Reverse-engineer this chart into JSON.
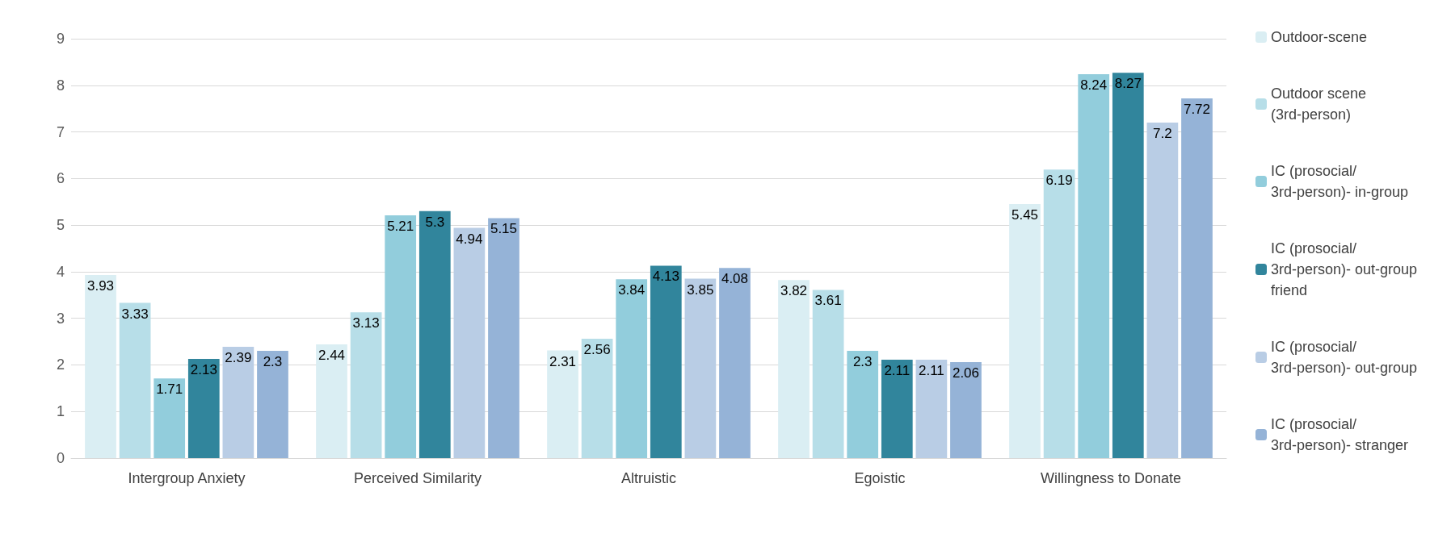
{
  "chart_data": {
    "type": "bar",
    "categories": [
      "Intergroup Anxiety",
      "Perceived Similarity",
      "Altruistic",
      "Egoistic",
      "Willingness to Donate"
    ],
    "series": [
      {
        "name": "Outdoor-scene",
        "color": "#daeef3",
        "values": [
          3.93,
          2.44,
          2.31,
          3.82,
          5.45
        ]
      },
      {
        "name": "Outdoor scene (3rd-person)",
        "color": "#b7dee8",
        "values": [
          3.33,
          3.13,
          2.56,
          3.61,
          6.19
        ]
      },
      {
        "name": "IC (prosocial/3rd-person)- in-group",
        "color": "#92cddc",
        "values": [
          1.71,
          5.21,
          3.84,
          2.3,
          8.24
        ]
      },
      {
        "name": "IC (prosocial/3rd-person)- out-group friend",
        "color": "#31859c",
        "values": [
          2.13,
          5.3,
          4.13,
          2.11,
          8.27
        ]
      },
      {
        "name": "IC (prosocial/3rd-person)- out-group",
        "color": "#b9cde5",
        "values": [
          2.39,
          4.94,
          3.85,
          2.11,
          7.2
        ]
      },
      {
        "name": "IC (prosocial/3rd-person)- stranger",
        "color": "#95b3d7",
        "values": [
          2.3,
          5.15,
          4.08,
          2.06,
          7.72
        ]
      }
    ],
    "ylim": [
      0,
      9
    ],
    "yticks": [
      0,
      1,
      2,
      3,
      4,
      5,
      6,
      7,
      8,
      9
    ],
    "grid": "y",
    "legend": "right",
    "data_labels": true
  }
}
